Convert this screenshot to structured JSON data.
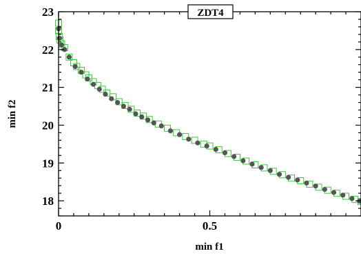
{
  "chart_data": {
    "type": "scatter",
    "title": "ZDT4",
    "xlabel": "min f1",
    "ylabel": "min f2",
    "xlim": [
      0,
      1
    ],
    "ylim": [
      17.6,
      23
    ],
    "x_ticks": [
      {
        "value": 0,
        "label": "0"
      },
      {
        "value": 0.5,
        "label": "0.5"
      }
    ],
    "y_ticks": [
      {
        "value": 18,
        "label": "18"
      },
      {
        "value": 19,
        "label": "19"
      },
      {
        "value": 20,
        "label": "20"
      },
      {
        "value": 21,
        "label": "21"
      },
      {
        "value": 22,
        "label": "22"
      },
      {
        "value": 23,
        "label": "23"
      }
    ],
    "grid": false,
    "legend": false,
    "series": [
      {
        "marker": "open-square",
        "color": "#33cc33",
        "values": [
          [
            0.0,
            22.7
          ],
          [
            0.0,
            22.5
          ],
          [
            0.002,
            22.35
          ],
          [
            0.005,
            22.25
          ],
          [
            0.01,
            22.15
          ],
          [
            0.02,
            22.05
          ],
          [
            0.035,
            21.8
          ],
          [
            0.05,
            21.65
          ],
          [
            0.06,
            21.55
          ],
          [
            0.075,
            21.45
          ],
          [
            0.09,
            21.33
          ],
          [
            0.1,
            21.25
          ],
          [
            0.115,
            21.15
          ],
          [
            0.13,
            21.05
          ],
          [
            0.145,
            20.95
          ],
          [
            0.16,
            20.85
          ],
          [
            0.18,
            20.75
          ],
          [
            0.2,
            20.62
          ],
          [
            0.22,
            20.52
          ],
          [
            0.24,
            20.42
          ],
          [
            0.26,
            20.32
          ],
          [
            0.28,
            20.24
          ],
          [
            0.3,
            20.15
          ],
          [
            0.33,
            20.03
          ],
          [
            0.36,
            19.92
          ],
          [
            0.39,
            19.8
          ],
          [
            0.42,
            19.7
          ],
          [
            0.45,
            19.6
          ],
          [
            0.48,
            19.5
          ],
          [
            0.5,
            19.45
          ],
          [
            0.53,
            19.35
          ],
          [
            0.56,
            19.25
          ],
          [
            0.59,
            19.15
          ],
          [
            0.62,
            19.05
          ],
          [
            0.65,
            18.95
          ],
          [
            0.68,
            18.87
          ],
          [
            0.71,
            18.78
          ],
          [
            0.74,
            18.69
          ],
          [
            0.77,
            18.6
          ],
          [
            0.8,
            18.53
          ],
          [
            0.83,
            18.44
          ],
          [
            0.86,
            18.36
          ],
          [
            0.89,
            18.28
          ],
          [
            0.92,
            18.2
          ],
          [
            0.95,
            18.12
          ],
          [
            0.98,
            18.04
          ],
          [
            1.0,
            17.98
          ]
        ]
      },
      {
        "marker": "filled-circle",
        "color": "#555555",
        "values": [
          [
            0.0,
            22.55
          ],
          [
            0.003,
            22.3
          ],
          [
            0.01,
            22.12
          ],
          [
            0.02,
            22.0
          ],
          [
            0.035,
            21.8
          ],
          [
            0.055,
            21.55
          ],
          [
            0.075,
            21.4
          ],
          [
            0.095,
            21.22
          ],
          [
            0.115,
            21.08
          ],
          [
            0.135,
            20.95
          ],
          [
            0.155,
            20.82
          ],
          [
            0.175,
            20.7
          ],
          [
            0.195,
            20.6
          ],
          [
            0.215,
            20.5
          ],
          [
            0.235,
            20.42
          ],
          [
            0.255,
            20.3
          ],
          [
            0.275,
            20.22
          ],
          [
            0.295,
            20.14
          ],
          [
            0.315,
            20.06
          ],
          [
            0.34,
            19.98
          ],
          [
            0.37,
            19.85
          ],
          [
            0.4,
            19.75
          ],
          [
            0.43,
            19.63
          ],
          [
            0.46,
            19.53
          ],
          [
            0.49,
            19.45
          ],
          [
            0.52,
            19.36
          ],
          [
            0.55,
            19.27
          ],
          [
            0.58,
            19.17
          ],
          [
            0.61,
            19.06
          ],
          [
            0.64,
            18.97
          ],
          [
            0.67,
            18.88
          ],
          [
            0.7,
            18.8
          ],
          [
            0.73,
            18.7
          ],
          [
            0.76,
            18.62
          ],
          [
            0.79,
            18.55
          ],
          [
            0.82,
            18.47
          ],
          [
            0.85,
            18.39
          ],
          [
            0.88,
            18.3
          ],
          [
            0.91,
            18.22
          ],
          [
            0.94,
            18.15
          ],
          [
            0.97,
            18.06
          ],
          [
            0.995,
            17.99
          ]
        ]
      }
    ]
  }
}
